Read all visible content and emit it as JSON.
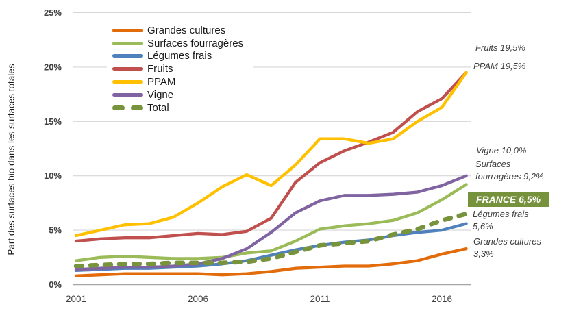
{
  "chart_data": {
    "type": "line",
    "title": "",
    "ylabel": "Part des surfaces bio dans les surfaces totales",
    "xlabel": "",
    "x": [
      2001,
      2002,
      2003,
      2004,
      2005,
      2006,
      2007,
      2008,
      2009,
      2010,
      2011,
      2012,
      2013,
      2014,
      2015,
      2016,
      2017
    ],
    "x_tick_values": [
      2001,
      2006,
      2011,
      2016
    ],
    "x_tick_labels": [
      "2001",
      "2006",
      "2011",
      "2016"
    ],
    "ylim": [
      0,
      25
    ],
    "y_tick_values": [
      0,
      5,
      10,
      15,
      20,
      25
    ],
    "y_tick_labels": [
      "0%",
      "5%",
      "10%",
      "15%",
      "20%",
      "25%"
    ],
    "grid": "horizontal-only",
    "legend_position": "inside-top-left",
    "series": [
      {
        "name": "Grandes cultures",
        "color": "#E36C0A",
        "dashed": false,
        "values": [
          0.8,
          0.9,
          1.0,
          1.0,
          1.0,
          1.0,
          0.9,
          1.0,
          1.2,
          1.5,
          1.6,
          1.7,
          1.7,
          1.9,
          2.2,
          2.8,
          3.3
        ]
      },
      {
        "name": "Surfaces fourragères",
        "color": "#9BBB59",
        "dashed": false,
        "values": [
          2.2,
          2.5,
          2.6,
          2.5,
          2.4,
          2.4,
          2.5,
          2.9,
          3.1,
          4.0,
          5.1,
          5.4,
          5.6,
          5.9,
          6.6,
          7.8,
          9.2
        ]
      },
      {
        "name": "Légumes frais",
        "color": "#4F81BD",
        "dashed": false,
        "values": [
          1.3,
          1.4,
          1.5,
          1.5,
          1.6,
          1.7,
          1.9,
          2.2,
          2.7,
          3.2,
          3.6,
          3.9,
          4.1,
          4.5,
          4.8,
          5.0,
          5.6
        ]
      },
      {
        "name": "Fruits",
        "color": "#C0504D",
        "dashed": false,
        "values": [
          4.0,
          4.2,
          4.3,
          4.3,
          4.5,
          4.7,
          4.6,
          4.9,
          6.1,
          9.4,
          11.2,
          12.3,
          13.1,
          14.0,
          15.9,
          17.1,
          19.5
        ]
      },
      {
        "name": "PPAM",
        "color": "#FFC000",
        "dashed": false,
        "values": [
          4.5,
          5.0,
          5.5,
          5.6,
          6.2,
          7.5,
          9.0,
          10.1,
          9.1,
          11.0,
          13.4,
          13.4,
          13.0,
          13.4,
          15.0,
          16.3,
          19.5
        ]
      },
      {
        "name": "Vigne",
        "color": "#8064A2",
        "dashed": false,
        "values": [
          1.4,
          1.5,
          1.6,
          1.6,
          1.7,
          1.9,
          2.4,
          3.3,
          4.8,
          6.6,
          7.7,
          8.2,
          8.2,
          8.3,
          8.5,
          9.1,
          10.0
        ]
      },
      {
        "name": "Total",
        "color": "#77933C",
        "dashed": true,
        "values": [
          1.7,
          1.8,
          1.9,
          1.9,
          2.0,
          2.0,
          2.0,
          2.1,
          2.4,
          3.0,
          3.6,
          3.8,
          4.0,
          4.6,
          5.1,
          5.9,
          6.5
        ]
      }
    ],
    "annotations": {
      "fruits": {
        "text": "Fruits 19,5%"
      },
      "ppam": {
        "text": "PPAM 19,5%"
      },
      "vigne": {
        "text": "Vigne 10,0%"
      },
      "fourrageres": {
        "line1": "Surfaces",
        "line2": "fourragères 9,2%"
      },
      "france": {
        "text": "FRANCE 6,5%",
        "highlight_color": "#76923C"
      },
      "legumes": {
        "line1": "Légumes frais",
        "line2": "5,6%"
      },
      "grandes": {
        "line1": "Grandes cultures",
        "line2": "3,3%"
      }
    },
    "colors": {
      "gridline": "#D6D6D6",
      "axis_line": "#A6A6A6",
      "tick_text": "#404040"
    }
  }
}
